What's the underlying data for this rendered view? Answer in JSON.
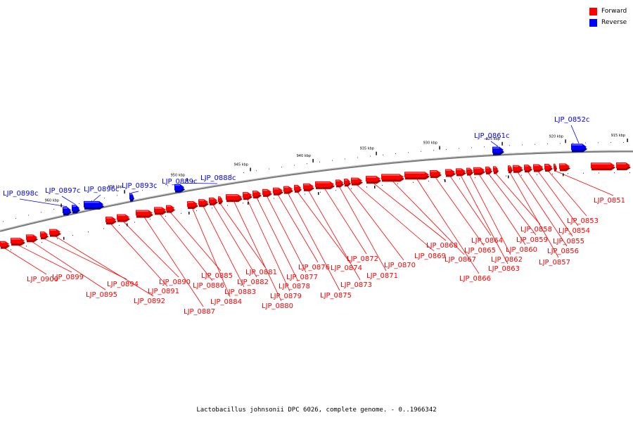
{
  "legend": {
    "items": [
      {
        "label": "Forward",
        "color": "#ff0000"
      },
      {
        "label": "Reverse",
        "color": "#0000ff"
      }
    ]
  },
  "caption": "Lactobacillus johnsonii DPC 6026, complete genome. - 0..1966342",
  "ticks": [
    "960 kbp",
    "955 kbp",
    "950 kbp",
    "945 kbp",
    "940 kbp",
    "935 kbp",
    "930 kbp",
    "925 kbp",
    "920 kbp",
    "915 kbp"
  ],
  "genes": {
    "forward_labels": [
      "LJP_0900",
      "LJP_0899",
      "LJP_0895",
      "LJP_0894",
      "LJP_0892",
      "LJP_0891",
      "LJP_0890",
      "LJP_0887",
      "LJP_0886",
      "LJP_0885",
      "LJP_0884",
      "LJP_0883",
      "LJP_0882",
      "LJP_0881",
      "LJP_0880",
      "LJP_0879",
      "LJP_0878",
      "LJP_0877",
      "LJP_0876",
      "LJP_0875",
      "LJP_0874",
      "LJP_0873",
      "LJP_0872",
      "LJP_0871",
      "LJP_0870",
      "LJP_0869",
      "LJP_0868",
      "LJP_0867",
      "LJP_0866",
      "LJP_0865",
      "LJP_0864",
      "LJP_0863",
      "LJP_0862",
      "LJP_0860",
      "LJP_0859",
      "LJP_0858",
      "LJP_0857",
      "LJP_0856",
      "LJP_0855",
      "LJP_0854",
      "LJP_0853",
      "LJP_0851"
    ],
    "reverse_labels": [
      "LJP_0898c",
      "LJP_0897c",
      "LJP_0896c",
      "LJP_0893c",
      "LJP_0889c",
      "LJP_0888c",
      "LJP_0861c",
      "LJP_0852c"
    ]
  }
}
